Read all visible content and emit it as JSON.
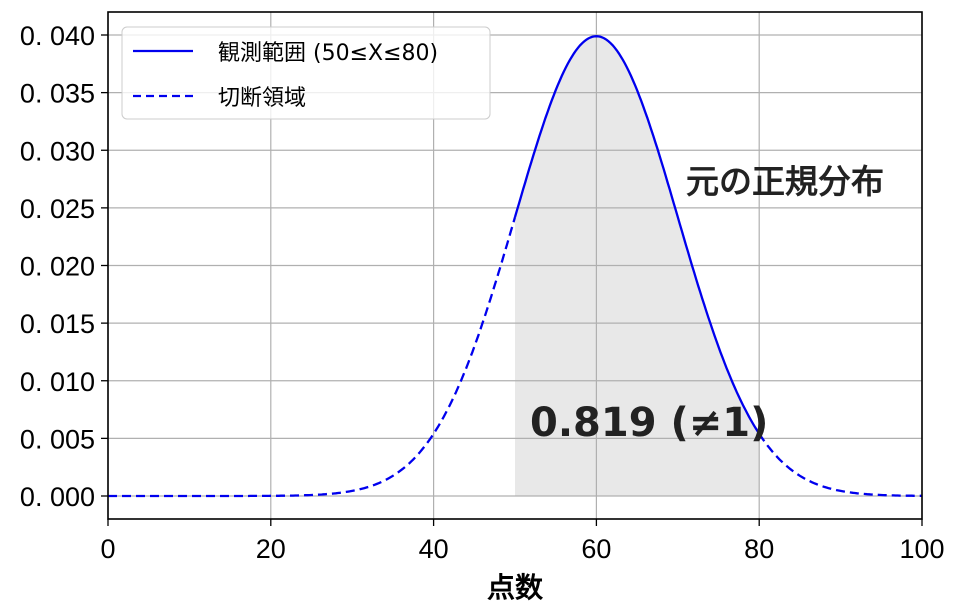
{
  "chart_data": {
    "type": "line",
    "title": "",
    "xlabel": "点数",
    "ylabel": "",
    "xlim": [
      0,
      100
    ],
    "ylim": [
      -0.002,
      0.042
    ],
    "grid": true,
    "x_ticks": [
      0,
      20,
      40,
      60,
      80,
      100
    ],
    "x_tick_labels": [
      "0",
      "20",
      "40",
      "60",
      "80",
      "100"
    ],
    "y_ticks": [
      0.0,
      0.005,
      0.01,
      0.015,
      0.02,
      0.025,
      0.03,
      0.035,
      0.04
    ],
    "y_tick_labels": [
      "0. 000",
      "0. 005",
      "0. 010",
      "0. 015",
      "0. 020",
      "0. 025",
      "0. 030",
      "0. 035",
      "0. 040"
    ],
    "distribution": {
      "name": "normal",
      "mu": 60,
      "sigma": 10
    },
    "series": [
      {
        "name": "観測範囲 (50≤X≤80)",
        "style": "solid",
        "color": "#0000ee",
        "x_range": [
          50,
          80
        ],
        "x": [
          50,
          55,
          60,
          65,
          70,
          75,
          80
        ],
        "values": [
          0.0242,
          0.0352,
          0.0399,
          0.0352,
          0.0242,
          0.013,
          0.0054
        ]
      },
      {
        "name": "切断領域",
        "style": "dashed",
        "color": "#0000ee",
        "x_range": [
          [
            0,
            50
          ],
          [
            80,
            100
          ]
        ],
        "x": [
          0,
          10,
          20,
          30,
          40,
          45,
          50,
          80,
          85,
          90,
          95,
          100
        ],
        "values": [
          0.0,
          0.0,
          0.0,
          0.0004,
          0.0054,
          0.013,
          0.0242,
          0.0054,
          0.0018,
          0.0004,
          0.0001,
          0.0
        ]
      }
    ],
    "shaded_region": {
      "x_range": [
        50,
        80
      ],
      "area": 0.819,
      "color": "#e8e8e8"
    },
    "annotations": [
      {
        "text": "元の正規分布",
        "x": 84,
        "y": 0.027
      },
      {
        "text": "0.819 (≠1)",
        "x": 62,
        "y": 0.0065
      }
    ],
    "legend_position": "upper left"
  },
  "legend": {
    "items": [
      {
        "label": "観測範囲 (50≤X≤80)",
        "style": "solid"
      },
      {
        "label": "切断領域",
        "style": "dashed"
      }
    ]
  },
  "annotations": {
    "original_dist": "元の正規分布",
    "area_label": "0.819 (≠1)"
  },
  "axes": {
    "xlabel": "点数"
  },
  "colors": {
    "line": "#0000ee",
    "shade": "#e8e8e8",
    "grid": "#b0b0b0",
    "text": "#222222"
  }
}
